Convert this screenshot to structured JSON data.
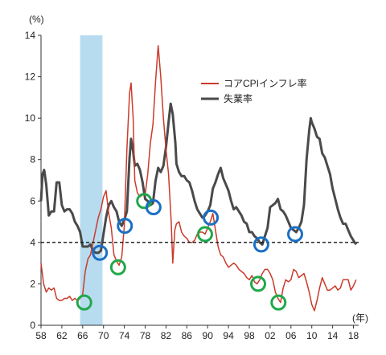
{
  "chart_data": {
    "type": "line",
    "y_unit_label": "(%)",
    "x_unit_label": "(年)",
    "xlim": [
      1958,
      2019
    ],
    "ylim": [
      0,
      14
    ],
    "y_ticks": [
      0,
      2,
      4,
      6,
      8,
      10,
      12,
      14
    ],
    "x_ticks": [
      1958,
      1962,
      1966,
      1970,
      1974,
      1978,
      1982,
      1986,
      1990,
      1994,
      1998,
      2002,
      2006,
      2010,
      2014,
      2018
    ],
    "x_tick_labels": [
      "58",
      "62",
      "66",
      "70",
      "74",
      "78",
      "82",
      "86",
      "90",
      "94",
      "98",
      "02",
      "06",
      "10",
      "14",
      "18"
    ],
    "grid": false,
    "legend_position": "top-right",
    "shaded_period": [
      1965.5,
      1969.8
    ],
    "shade_color": "#b7dcef",
    "reference_line": {
      "y": 4,
      "style": "dashed",
      "color": "#111111"
    },
    "series": [
      {
        "name": "コアCPIインフレ率",
        "color": "#cc3a2b",
        "points": [
          [
            1958.0,
            3.0
          ],
          [
            1958.5,
            2.0
          ],
          [
            1959.0,
            1.6
          ],
          [
            1959.5,
            1.8
          ],
          [
            1960.0,
            1.7
          ],
          [
            1960.5,
            1.8
          ],
          [
            1961.0,
            1.3
          ],
          [
            1961.5,
            1.2
          ],
          [
            1962.0,
            1.2
          ],
          [
            1962.5,
            1.3
          ],
          [
            1963.0,
            1.3
          ],
          [
            1963.5,
            1.4
          ],
          [
            1964.0,
            1.2
          ],
          [
            1964.5,
            1.3
          ],
          [
            1965.0,
            1.2
          ],
          [
            1965.5,
            1.3
          ],
          [
            1966.0,
            1.5
          ],
          [
            1966.5,
            2.6
          ],
          [
            1967.0,
            3.2
          ],
          [
            1967.5,
            3.4
          ],
          [
            1968.0,
            4.0
          ],
          [
            1968.5,
            4.6
          ],
          [
            1969.0,
            5.2
          ],
          [
            1969.5,
            5.6
          ],
          [
            1970.0,
            6.2
          ],
          [
            1970.5,
            6.5
          ],
          [
            1971.0,
            5.4
          ],
          [
            1971.5,
            4.7
          ],
          [
            1972.0,
            3.4
          ],
          [
            1972.5,
            3.1
          ],
          [
            1973.0,
            2.9
          ],
          [
            1973.5,
            3.3
          ],
          [
            1974.0,
            4.8
          ],
          [
            1974.5,
            8.5
          ],
          [
            1975.0,
            11.2
          ],
          [
            1975.3,
            11.7
          ],
          [
            1975.7,
            10.0
          ],
          [
            1976.0,
            7.0
          ],
          [
            1976.5,
            6.4
          ],
          [
            1977.0,
            6.2
          ],
          [
            1977.5,
            6.3
          ],
          [
            1978.0,
            6.3
          ],
          [
            1978.5,
            7.3
          ],
          [
            1979.0,
            8.8
          ],
          [
            1979.5,
            9.7
          ],
          [
            1980.0,
            11.8
          ],
          [
            1980.5,
            13.5
          ],
          [
            1981.0,
            12.0
          ],
          [
            1981.5,
            10.0
          ],
          [
            1982.0,
            8.5
          ],
          [
            1982.5,
            7.3
          ],
          [
            1983.0,
            5.0
          ],
          [
            1983.3,
            3.0
          ],
          [
            1983.7,
            4.6
          ],
          [
            1984.0,
            4.9
          ],
          [
            1984.5,
            5.0
          ],
          [
            1985.0,
            4.5
          ],
          [
            1985.5,
            4.3
          ],
          [
            1986.0,
            4.2
          ],
          [
            1986.5,
            4.0
          ],
          [
            1987.0,
            4.0
          ],
          [
            1987.5,
            4.1
          ],
          [
            1988.0,
            4.4
          ],
          [
            1988.5,
            4.5
          ],
          [
            1989.0,
            4.5
          ],
          [
            1989.5,
            4.4
          ],
          [
            1990.0,
            4.7
          ],
          [
            1990.5,
            5.0
          ],
          [
            1991.0,
            5.4
          ],
          [
            1991.5,
            4.6
          ],
          [
            1992.0,
            3.8
          ],
          [
            1992.5,
            3.4
          ],
          [
            1993.0,
            3.3
          ],
          [
            1993.5,
            3.0
          ],
          [
            1994.0,
            2.8
          ],
          [
            1994.5,
            2.9
          ],
          [
            1995.0,
            3.0
          ],
          [
            1995.5,
            2.9
          ],
          [
            1996.0,
            2.7
          ],
          [
            1996.5,
            2.6
          ],
          [
            1997.0,
            2.5
          ],
          [
            1997.5,
            2.3
          ],
          [
            1998.0,
            2.2
          ],
          [
            1998.5,
            2.4
          ],
          [
            1999.0,
            2.1
          ],
          [
            1999.5,
            2.0
          ],
          [
            2000.0,
            2.2
          ],
          [
            2000.5,
            2.5
          ],
          [
            2001.0,
            2.7
          ],
          [
            2001.5,
            2.7
          ],
          [
            2002.0,
            2.5
          ],
          [
            2002.5,
            2.2
          ],
          [
            2003.0,
            1.6
          ],
          [
            2003.5,
            1.3
          ],
          [
            2004.0,
            1.1
          ],
          [
            2004.5,
            1.8
          ],
          [
            2005.0,
            2.2
          ],
          [
            2005.5,
            2.1
          ],
          [
            2006.0,
            2.2
          ],
          [
            2006.5,
            2.7
          ],
          [
            2007.0,
            2.6
          ],
          [
            2007.5,
            2.3
          ],
          [
            2008.0,
            2.4
          ],
          [
            2008.5,
            2.5
          ],
          [
            2009.0,
            2.1
          ],
          [
            2009.5,
            1.6
          ],
          [
            2010.0,
            1.0
          ],
          [
            2010.5,
            0.7
          ],
          [
            2011.0,
            1.2
          ],
          [
            2011.5,
            1.8
          ],
          [
            2012.0,
            2.3
          ],
          [
            2012.5,
            2.0
          ],
          [
            2013.0,
            1.7
          ],
          [
            2013.5,
            1.7
          ],
          [
            2014.0,
            1.8
          ],
          [
            2014.5,
            1.9
          ],
          [
            2015.0,
            1.7
          ],
          [
            2015.5,
            1.8
          ],
          [
            2016.0,
            2.2
          ],
          [
            2016.5,
            2.2
          ],
          [
            2017.0,
            2.2
          ],
          [
            2017.5,
            1.7
          ],
          [
            2018.0,
            1.9
          ],
          [
            2018.5,
            2.2
          ]
        ]
      },
      {
        "name": "失業率",
        "color": "#4a4a4a",
        "points": [
          [
            1958.0,
            6.0
          ],
          [
            1958.3,
            7.3
          ],
          [
            1958.6,
            7.5
          ],
          [
            1959.0,
            6.8
          ],
          [
            1959.5,
            5.3
          ],
          [
            1960.0,
            5.5
          ],
          [
            1960.5,
            5.5
          ],
          [
            1961.0,
            6.9
          ],
          [
            1961.5,
            6.9
          ],
          [
            1962.0,
            5.8
          ],
          [
            1962.5,
            5.5
          ],
          [
            1963.0,
            5.6
          ],
          [
            1963.5,
            5.6
          ],
          [
            1964.0,
            5.4
          ],
          [
            1964.5,
            5.0
          ],
          [
            1965.0,
            4.8
          ],
          [
            1965.5,
            4.5
          ],
          [
            1966.0,
            3.8
          ],
          [
            1966.5,
            3.8
          ],
          [
            1967.0,
            3.8
          ],
          [
            1967.5,
            3.9
          ],
          [
            1968.0,
            3.6
          ],
          [
            1968.5,
            3.5
          ],
          [
            1969.0,
            3.5
          ],
          [
            1969.5,
            3.6
          ],
          [
            1970.0,
            4.4
          ],
          [
            1970.5,
            5.2
          ],
          [
            1971.0,
            5.8
          ],
          [
            1971.5,
            6.0
          ],
          [
            1972.0,
            5.7
          ],
          [
            1972.5,
            5.5
          ],
          [
            1973.0,
            5.0
          ],
          [
            1973.5,
            4.8
          ],
          [
            1974.0,
            5.1
          ],
          [
            1974.5,
            5.5
          ],
          [
            1975.0,
            8.1
          ],
          [
            1975.3,
            9.0
          ],
          [
            1975.7,
            8.4
          ],
          [
            1976.0,
            7.7
          ],
          [
            1976.5,
            7.8
          ],
          [
            1977.0,
            7.5
          ],
          [
            1977.5,
            6.9
          ],
          [
            1978.0,
            6.1
          ],
          [
            1978.5,
            6.0
          ],
          [
            1979.0,
            5.8
          ],
          [
            1979.5,
            5.9
          ],
          [
            1980.0,
            7.0
          ],
          [
            1980.5,
            7.6
          ],
          [
            1981.0,
            7.4
          ],
          [
            1981.5,
            7.7
          ],
          [
            1982.0,
            8.6
          ],
          [
            1982.5,
            9.8
          ],
          [
            1982.9,
            10.7
          ],
          [
            1983.3,
            10.2
          ],
          [
            1983.8,
            8.8
          ],
          [
            1984.0,
            7.8
          ],
          [
            1984.5,
            7.4
          ],
          [
            1985.0,
            7.2
          ],
          [
            1985.5,
            7.2
          ],
          [
            1986.0,
            7.0
          ],
          [
            1986.5,
            6.9
          ],
          [
            1987.0,
            6.5
          ],
          [
            1987.5,
            6.0
          ],
          [
            1988.0,
            5.6
          ],
          [
            1988.5,
            5.4
          ],
          [
            1989.0,
            5.2
          ],
          [
            1989.5,
            5.3
          ],
          [
            1990.0,
            5.5
          ],
          [
            1990.5,
            5.8
          ],
          [
            1991.0,
            6.6
          ],
          [
            1991.5,
            6.9
          ],
          [
            1992.0,
            7.3
          ],
          [
            1992.5,
            7.6
          ],
          [
            1993.0,
            7.1
          ],
          [
            1993.5,
            6.8
          ],
          [
            1994.0,
            6.5
          ],
          [
            1994.5,
            6.0
          ],
          [
            1995.0,
            5.6
          ],
          [
            1995.5,
            5.7
          ],
          [
            1996.0,
            5.5
          ],
          [
            1996.5,
            5.3
          ],
          [
            1997.0,
            5.0
          ],
          [
            1997.5,
            4.9
          ],
          [
            1998.0,
            4.5
          ],
          [
            1998.5,
            4.5
          ],
          [
            1999.0,
            4.3
          ],
          [
            1999.5,
            4.2
          ],
          [
            2000.0,
            4.0
          ],
          [
            2000.5,
            3.9
          ],
          [
            2001.0,
            4.3
          ],
          [
            2001.5,
            4.7
          ],
          [
            2002.0,
            5.7
          ],
          [
            2002.5,
            5.8
          ],
          [
            2003.0,
            5.9
          ],
          [
            2003.5,
            6.1
          ],
          [
            2004.0,
            5.6
          ],
          [
            2004.5,
            5.5
          ],
          [
            2005.0,
            5.3
          ],
          [
            2005.5,
            5.0
          ],
          [
            2006.0,
            4.7
          ],
          [
            2006.5,
            4.6
          ],
          [
            2007.0,
            4.5
          ],
          [
            2007.5,
            4.7
          ],
          [
            2008.0,
            5.0
          ],
          [
            2008.5,
            5.8
          ],
          [
            2009.0,
            8.0
          ],
          [
            2009.5,
            9.4
          ],
          [
            2009.8,
            10.0
          ],
          [
            2010.0,
            9.8
          ],
          [
            2010.5,
            9.5
          ],
          [
            2011.0,
            9.1
          ],
          [
            2011.5,
            9.0
          ],
          [
            2012.0,
            8.3
          ],
          [
            2012.5,
            8.1
          ],
          [
            2013.0,
            7.7
          ],
          [
            2013.5,
            7.3
          ],
          [
            2014.0,
            6.6
          ],
          [
            2014.5,
            6.1
          ],
          [
            2015.0,
            5.6
          ],
          [
            2015.5,
            5.2
          ],
          [
            2016.0,
            4.9
          ],
          [
            2016.5,
            4.9
          ],
          [
            2017.0,
            4.6
          ],
          [
            2017.5,
            4.3
          ],
          [
            2018.0,
            4.1
          ],
          [
            2018.5,
            3.9
          ]
        ]
      }
    ],
    "annotations": {
      "green_circles": [
        [
          1966.3,
          1.1
        ],
        [
          1972.8,
          2.8
        ],
        [
          1977.8,
          6.0
        ],
        [
          1989.5,
          4.4
        ],
        [
          1999.7,
          2.0
        ],
        [
          2003.6,
          1.1
        ]
      ],
      "blue_circles": [
        [
          1969.3,
          3.5
        ],
        [
          1974.1,
          4.8
        ],
        [
          1979.6,
          5.7
        ],
        [
          1990.6,
          5.2
        ],
        [
          2000.3,
          3.9
        ],
        [
          2006.8,
          4.4
        ]
      ],
      "green_color": "#1fa84a",
      "blue_color": "#1a6fc4"
    }
  }
}
